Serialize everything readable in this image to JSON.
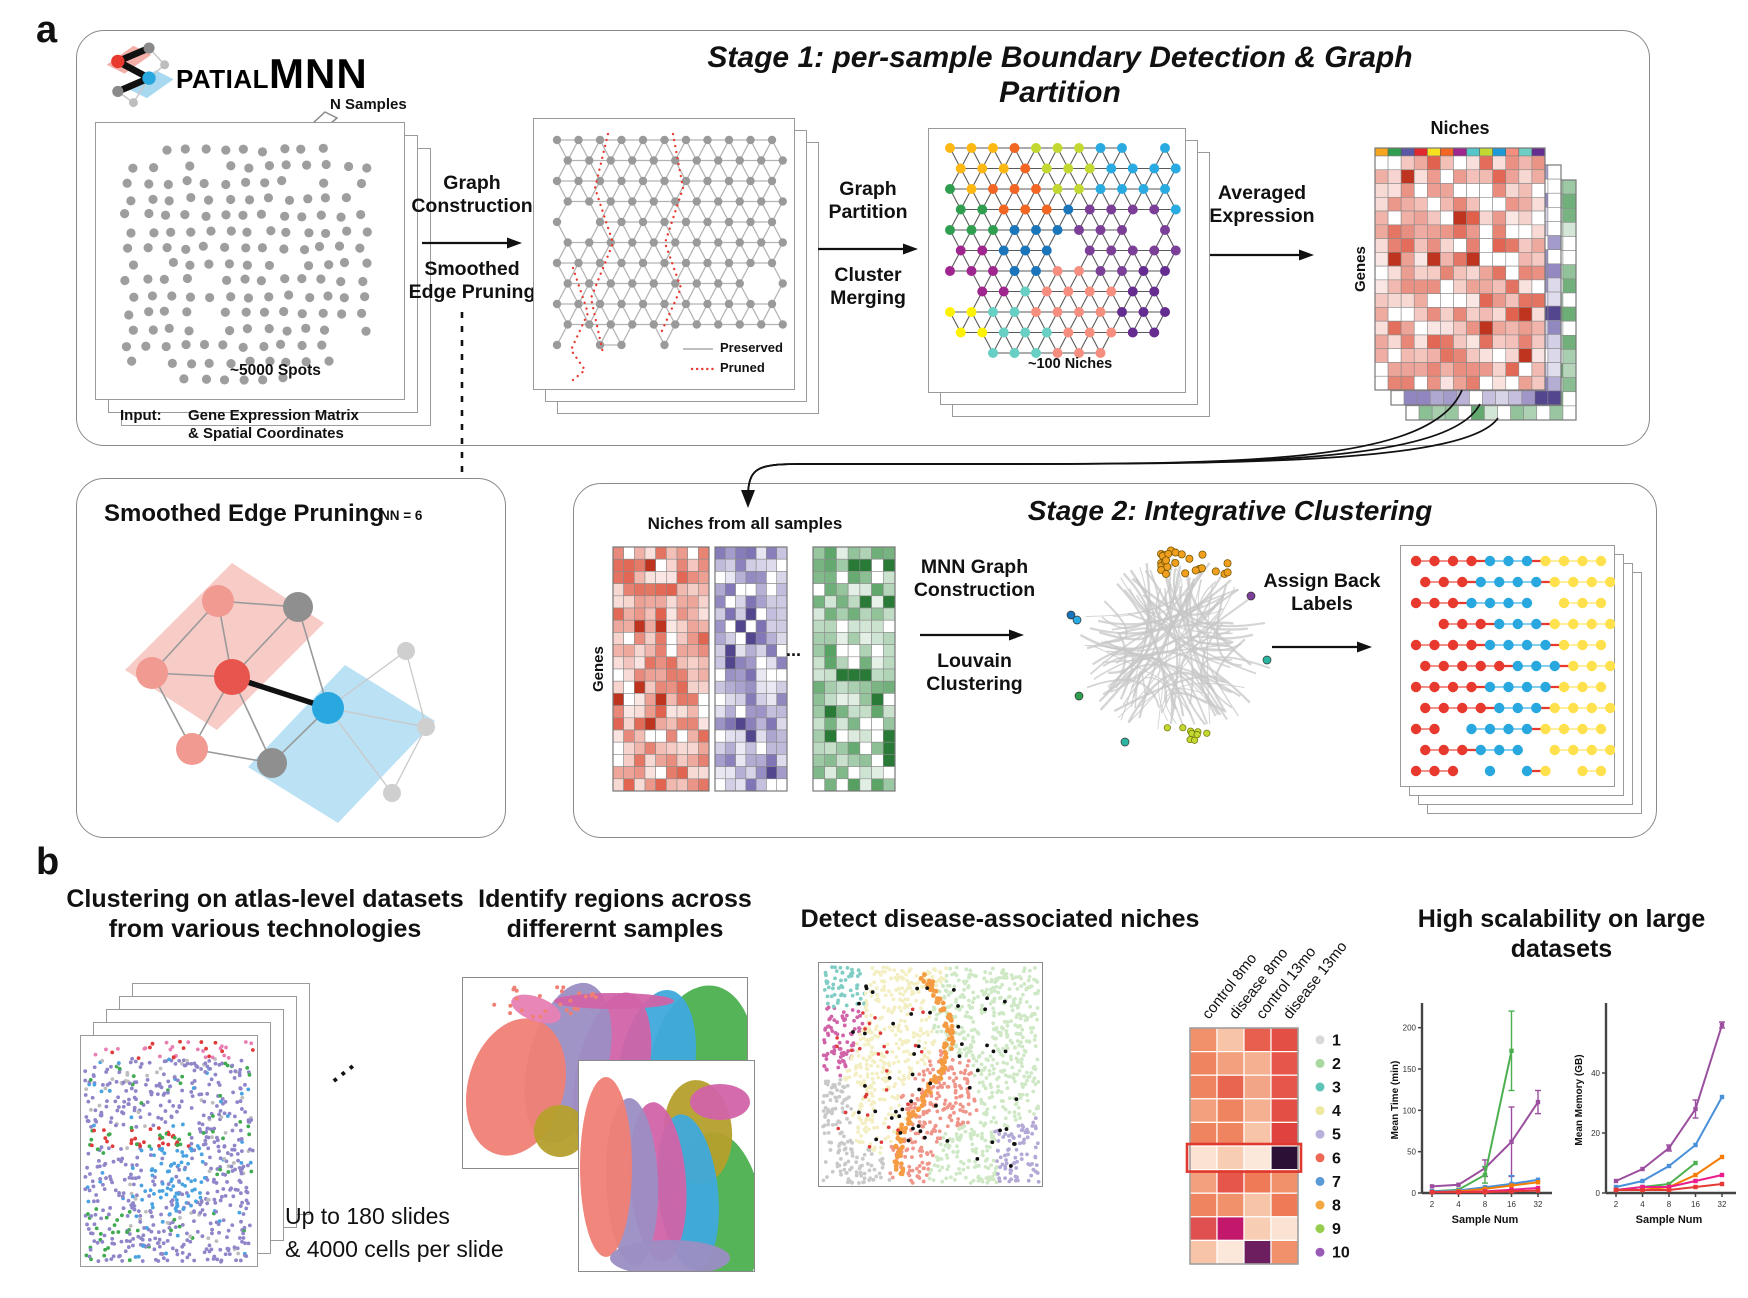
{
  "labels": {
    "a": "a",
    "b": "b"
  },
  "logo": {
    "patial": "PATIAL",
    "mnn": "MNN"
  },
  "stage1": {
    "title": "Stage 1:  per-sample Boundary Detection & Graph Partition",
    "n_samples": "N Samples",
    "spots": "~5000 Spots",
    "input_label": "Input:",
    "input_value": "Gene Expression Matrix\n& Spatial Coordinates",
    "arrow1_top": "Graph\nConstruction",
    "arrow1_bottom": "Smoothed\nEdge Pruning",
    "legend_preserved": "Preserved",
    "legend_pruned": "Pruned",
    "arrow2_top": "Graph\nPartition",
    "arrow2_bottom": "Cluster\nMerging",
    "niches_count": "~100 Niches",
    "arrow3_top": "Averaged\nExpression",
    "heatmap_title": "Niches",
    "genes": "Genes"
  },
  "sep_box": {
    "title": "Smoothed Edge Pruning",
    "nn": "NN = 6"
  },
  "stage2": {
    "title": "Stage 2: Integrative Clustering",
    "niches_from": "Niches from all samples",
    "genes": "Genes",
    "ellipsis": "...",
    "arrow1_top": "MNN Graph\nConstruction",
    "arrow1_bottom": "Louvain\nClustering",
    "arrow2_top": "Assign Back\nLabels"
  },
  "panelb": {
    "col1": {
      "title": "Clustering on atlas-level datasets\nfrom various technologies",
      "ellipsis": "...",
      "caption": "Up to 180 slides\n& 4000 cells per slide"
    },
    "col2": {
      "title": "Identify regions across\ndifferernt samples"
    },
    "col3": {
      "title": "Detect disease-associated niches",
      "col_labels": [
        "control 8mo",
        "disease 8mo",
        "control 13mo",
        "disease 13mo"
      ],
      "highlight_row": 6,
      "legend": [
        {
          "label": "1",
          "color": "#d9d9d9"
        },
        {
          "label": "2",
          "color": "#a8d8a0"
        },
        {
          "label": "3",
          "color": "#5fc4b8"
        },
        {
          "label": "4",
          "color": "#efe9a0"
        },
        {
          "label": "5",
          "color": "#b7b1dc"
        },
        {
          "label": "6",
          "color": "#ef6855"
        },
        {
          "label": "7",
          "color": "#5b9bd5"
        },
        {
          "label": "8",
          "color": "#f5a742"
        },
        {
          "label": "9",
          "color": "#97cc4f"
        },
        {
          "label": "10",
          "color": "#9b59b6"
        }
      ],
      "heat_cells": [
        [
          "#f0916c",
          "#f7c4a8",
          "#e85f4d",
          "#e34f45"
        ],
        [
          "#ef8560",
          "#f2a07e",
          "#f4b091",
          "#e6564a"
        ],
        [
          "#ef8560",
          "#e8654f",
          "#f2a587",
          "#e6564a"
        ],
        [
          "#f2a07e",
          "#ef8560",
          "#f4b091",
          "#e34f45"
        ],
        [
          "#ef8560",
          "#ef8560",
          "#f7c4a8",
          "#e0433f"
        ],
        [
          "#fbe3d4",
          "#f7cdb4",
          "#fbe8da",
          "#2d1036"
        ],
        [
          "#f2a07e",
          "#e6564a",
          "#ee7a58",
          "#f0916c"
        ],
        [
          "#ef8560",
          "#f0916c",
          "#f7c4a8",
          "#ee7a58"
        ],
        [
          "#e05050",
          "#c2176b",
          "#f7cdb4",
          "#fbe3d4"
        ],
        [
          "#f7c4a8",
          "#fbe8da",
          "#6d1e5f",
          "#f0916c"
        ]
      ]
    },
    "col4": {
      "title": "High scalability on large datasets"
    }
  },
  "chart_data": [
    {
      "type": "line",
      "xlabel": "Sample Num",
      "ylabel": "Mean Time (min)",
      "x": [
        2,
        4,
        8,
        16,
        32
      ],
      "xtick_labels": [
        "2",
        "4",
        "8",
        "16",
        "32"
      ],
      "ylim": [
        0,
        225
      ],
      "yticks": [
        0,
        50,
        100,
        150,
        200
      ],
      "grid": false,
      "legend_position": "none",
      "series": [
        {
          "name": "purple",
          "color": "#9b4f9e",
          "values": [
            8,
            10,
            30,
            62,
            110
          ],
          "err": [
            3,
            3,
            10,
            42,
            14
          ]
        },
        {
          "name": "green",
          "color": "#4caf50",
          "values": [
            2,
            4,
            22,
            172,
            null
          ],
          "err": [
            1,
            1,
            10,
            48,
            null
          ]
        },
        {
          "name": "blue",
          "color": "#4a90d9",
          "values": [
            2,
            3,
            7,
            11,
            16
          ],
          "err": [
            1,
            1,
            2,
            10,
            3
          ]
        },
        {
          "name": "orange",
          "color": "#f57c00",
          "values": [
            1,
            2,
            5,
            9,
            13
          ]
        },
        {
          "name": "pink",
          "color": "#e91e8c",
          "values": [
            1,
            1,
            2,
            4,
            6
          ]
        },
        {
          "name": "red",
          "color": "#e53935",
          "values": [
            1,
            1,
            1,
            2,
            3
          ]
        }
      ]
    },
    {
      "type": "line",
      "xlabel": "Sample Num",
      "ylabel": "Mean Memory (GB)",
      "x": [
        2,
        4,
        8,
        16,
        32
      ],
      "xtick_labels": [
        "2",
        "4",
        "8",
        "16",
        "32"
      ],
      "ylim": [
        0,
        62
      ],
      "yticks": [
        0,
        20,
        40
      ],
      "grid": false,
      "legend_position": "none",
      "series": [
        {
          "name": "purple",
          "color": "#9b4f9e",
          "values": [
            4,
            8,
            15,
            28,
            56
          ],
          "err": [
            0.5,
            0.5,
            1,
            3,
            1
          ]
        },
        {
          "name": "blue",
          "color": "#4a90d9",
          "values": [
            2,
            4,
            9,
            16,
            32
          ]
        },
        {
          "name": "green",
          "color": "#4caf50",
          "values": [
            1,
            2,
            3,
            10,
            null
          ]
        },
        {
          "name": "orange",
          "color": "#f57c00",
          "values": [
            1,
            1,
            2,
            6,
            12
          ]
        },
        {
          "name": "pink",
          "color": "#e91e8c",
          "values": [
            1,
            2,
            2,
            4,
            6
          ]
        },
        {
          "name": "red",
          "color": "#e53935",
          "values": [
            1,
            1,
            1,
            2,
            3
          ]
        }
      ]
    }
  ],
  "colors": {
    "spot": "#9e9e9e",
    "mesh_node": "#9a9a9a",
    "mesh_edge": "#b3b3b3",
    "pruned": "#e8392f",
    "heat_red": "#d93b22",
    "heat_purple": "#5e4fa2",
    "heat_green": "#2e8b3d",
    "niche_strip": [
      "#f5a51e",
      "#2f9e4e",
      "#5b57a5",
      "#e0282e",
      "#f7e11e",
      "#f26522",
      "#a0268f",
      "#52c6c9",
      "#c3d831",
      "#1d9ad6",
      "#f58e7e",
      "#6dcfc4",
      "#662d91"
    ],
    "mesh_palette": [
      "#fdb813",
      "#2f9e4e",
      "#f26522",
      "#c3d831",
      "#29abe2",
      "#7b3f98",
      "#1b75bb",
      "#a0268f",
      "#f58e7e",
      "#67cfc4",
      "#fff200",
      "#662d91"
    ],
    "final_zones": [
      "#e8392f",
      "#29a8e0",
      "#ffe14d"
    ],
    "sep": {
      "red": "#e8554e",
      "salmon": "#f09a92",
      "blue": "#29a8e0",
      "gray": "#8f8f8f",
      "red_plane": "#f6c3bd",
      "blue_plane": "#aedcf2"
    },
    "slide_scatter": {
      "purple": "#8f86c9",
      "blue": "#4aa3e0",
      "green": "#3faa4f",
      "red": "#e03b3b",
      "pink": "#e87fb4",
      "gray": "#bdbdbd"
    },
    "regions": {
      "salmon": "#ef8075",
      "olive": "#b5a02c",
      "magenta": "#d163a8",
      "purple": "#9b8ec4",
      "blue": "#3fa9dc",
      "green": "#4cb04f",
      "pink": "#e87fb4"
    },
    "disease": {
      "gray": "#c9c9c9",
      "paleyellow": "#f3efc3",
      "palegreen": "#cfe8c5",
      "salmon": "#f0958a",
      "orange": "#f59b42",
      "teal": "#7fcdc4",
      "magenta": "#d163a8",
      "purple": "#b3a8d6",
      "black": "#111111",
      "red": "#e03b3b"
    }
  }
}
